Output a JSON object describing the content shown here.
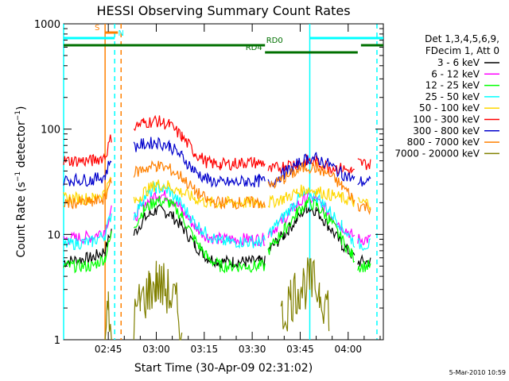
{
  "chart_data": {
    "type": "line",
    "title": "HESSI Observing Summary Count Rates",
    "xlabel": "Start Time (30-Apr-09 02:31:02)",
    "ylabel": "Count Rate (s⁻¹ detector⁻¹)",
    "ylabel_parts": {
      "a": "Count Rate (s",
      "b": "−1",
      "c": " detector",
      "d": "−1",
      "e": ")"
    },
    "y_scale": "log",
    "ylim": [
      1,
      1000
    ],
    "xlim": [
      "02:31:02",
      "04:11:00"
    ],
    "x_ticks": [
      "02:45",
      "03:00",
      "03:15",
      "03:30",
      "03:45",
      "04:00"
    ],
    "y_ticks": [
      "1",
      "10",
      "100",
      "1000"
    ],
    "legend_header": [
      "Det 1,3,4,5,6,9,",
      "FDecim 1, Att 0"
    ],
    "legend_position": "right",
    "series": [
      {
        "name": "3 - 6 keV",
        "color": "#000000",
        "segments": [
          {
            "x": [
              "02:31:02",
              "02:40",
              "02:44",
              "02:46"
            ],
            "y": [
              5.5,
              6,
              7,
              11
            ]
          },
          {
            "x": [
              "02:53",
              "02:56",
              "03:00",
              "03:04",
              "03:08",
              "03:12",
              "03:16",
              "03:20",
              "03:24",
              "03:28",
              "03:32",
              "03:34"
            ],
            "y": [
              10,
              14,
              17,
              16,
              12,
              8,
              6,
              5.5,
              5.5,
              5.5,
              5.5,
              5.5
            ]
          },
          {
            "x": [
              "03:35",
              "03:40",
              "03:44",
              "03:47",
              "03:50",
              "03:54",
              "03:58",
              "04:01",
              "04:02"
            ],
            "y": [
              7,
              10,
              14,
              18,
              17,
              12,
              8,
              6.5,
              6
            ]
          },
          {
            "x": [
              "04:03",
              "04:07"
            ],
            "y": [
              5.5,
              5.5
            ]
          }
        ]
      },
      {
        "name": "6 - 12 keV",
        "color": "#ff00ff",
        "segments": [
          {
            "x": [
              "02:31:02",
              "02:40",
              "02:44",
              "02:46"
            ],
            "y": [
              9,
              9.5,
              11,
              18
            ]
          },
          {
            "x": [
              "02:53",
              "02:56",
              "03:00",
              "03:04",
              "03:08",
              "03:12",
              "03:16",
              "03:20",
              "03:24",
              "03:28",
              "03:32",
              "03:34"
            ],
            "y": [
              14,
              19,
              24,
              23,
              17,
              12,
              9.5,
              9,
              9,
              9,
              9,
              9
            ]
          },
          {
            "x": [
              "03:35",
              "03:40",
              "03:44",
              "03:47",
              "03:50",
              "03:54",
              "03:58",
              "04:01",
              "04:02"
            ],
            "y": [
              10,
              14,
              19,
              22,
              21,
              16,
              12,
              10,
              9.5
            ]
          },
          {
            "x": [
              "04:03",
              "04:07"
            ],
            "y": [
              9,
              9
            ]
          }
        ]
      },
      {
        "name": "12 - 25 keV",
        "color": "#00ff00",
        "segments": [
          {
            "x": [
              "02:31:02",
              "02:40",
              "02:44",
              "02:46"
            ],
            "y": [
              5,
              5,
              6,
              10
            ]
          },
          {
            "x": [
              "02:53",
              "02:56",
              "03:00",
              "03:04",
              "03:08",
              "03:12",
              "03:16",
              "03:20",
              "03:24",
              "03:28",
              "03:32",
              "03:34"
            ],
            "y": [
              12,
              17,
              21,
              20,
              15,
              9,
              6,
              5,
              5,
              5,
              5,
              5
            ]
          },
          {
            "x": [
              "03:35",
              "03:40",
              "03:44",
              "03:47",
              "03:50",
              "03:54",
              "03:58",
              "04:01",
              "04:02"
            ],
            "y": [
              7,
              11,
              16,
              20,
              19,
              14,
              9,
              6.5,
              6
            ]
          },
          {
            "x": [
              "04:03",
              "04:07"
            ],
            "y": [
              5,
              5
            ]
          }
        ]
      },
      {
        "name": "25 - 50 keV",
        "color": "#00ffff",
        "segments": [
          {
            "x": [
              "02:31:02",
              "02:40",
              "02:44",
              "02:46"
            ],
            "y": [
              8,
              8.5,
              10,
              16
            ]
          },
          {
            "x": [
              "02:53",
              "02:56",
              "03:00",
              "03:04",
              "03:08",
              "03:12",
              "03:16",
              "03:20",
              "03:24",
              "03:28",
              "03:32",
              "03:34"
            ],
            "y": [
              15,
              22,
              28,
              26,
              19,
              13,
              10,
              8.5,
              8.5,
              8.5,
              8.5,
              8.5
            ]
          },
          {
            "x": [
              "03:35",
              "03:40",
              "03:44",
              "03:47",
              "03:50",
              "03:54",
              "03:58",
              "04:01",
              "04:02"
            ],
            "y": [
              10,
              15,
              21,
              24,
              23,
              17,
              12,
              9,
              8.5
            ]
          },
          {
            "x": [
              "04:03",
              "04:07"
            ],
            "y": [
              8,
              8
            ]
          }
        ]
      },
      {
        "name": "50 - 100 keV",
        "color": "#ffd700",
        "segments": [
          {
            "x": [
              "02:31:02",
              "02:40",
              "02:44",
              "02:46"
            ],
            "y": [
              22,
              22,
              25,
              35
            ]
          },
          {
            "x": [
              "02:53",
              "02:56",
              "03:00",
              "03:04",
              "03:08",
              "03:12",
              "03:16",
              "03:20",
              "03:24",
              "03:28",
              "03:32",
              "03:34"
            ],
            "y": [
              20,
              25,
              30,
              29,
              25,
              22,
              20,
              20,
              20,
              20,
              20,
              20
            ]
          },
          {
            "x": [
              "03:35",
              "03:40",
              "03:44",
              "03:47",
              "03:50",
              "03:54",
              "03:58",
              "04:01",
              "04:02"
            ],
            "y": [
              20,
              22,
              25,
              27,
              26,
              24,
              22,
              21,
              20
            ]
          },
          {
            "x": [
              "04:03",
              "04:07"
            ],
            "y": [
              20,
              20
            ]
          }
        ]
      },
      {
        "name": "100 - 300 keV",
        "color": "#ff0000",
        "segments": [
          {
            "x": [
              "02:31:02",
              "02:40",
              "02:44",
              "02:46"
            ],
            "y": [
              50,
              50,
              55,
              85
            ]
          },
          {
            "x": [
              "02:53",
              "02:56",
              "03:00",
              "03:04",
              "03:08",
              "03:12",
              "03:16",
              "03:20",
              "03:24",
              "03:28",
              "03:32",
              "03:34"
            ],
            "y": [
              105,
              115,
              120,
              110,
              85,
              60,
              48,
              46,
              47,
              48,
              48,
              48
            ]
          },
          {
            "x": [
              "03:35",
              "03:40",
              "03:44",
              "03:47",
              "03:50",
              "03:54",
              "03:58",
              "04:01",
              "04:02"
            ],
            "y": [
              40,
              45,
              48,
              50,
              48,
              44,
              42,
              40,
              38
            ]
          },
          {
            "x": [
              "04:03",
              "04:07"
            ],
            "y": [
              48,
              46
            ]
          }
        ]
      },
      {
        "name": "300 - 800 keV",
        "color": "#0000cc",
        "segments": [
          {
            "x": [
              "02:31:02",
              "02:40",
              "02:44",
              "02:46"
            ],
            "y": [
              33,
              33,
              36,
              55
            ]
          },
          {
            "x": [
              "02:53",
              "02:56",
              "03:00",
              "03:04",
              "03:08",
              "03:12",
              "03:16",
              "03:20",
              "03:24",
              "03:28",
              "03:32",
              "03:34"
            ],
            "y": [
              68,
              72,
              75,
              70,
              55,
              40,
              33,
              31,
              31,
              32,
              32,
              32
            ]
          },
          {
            "x": [
              "03:35",
              "03:40",
              "03:44",
              "03:47",
              "03:50",
              "03:54",
              "03:58",
              "04:01",
              "04:02"
            ],
            "y": [
              30,
              38,
              46,
              52,
              53,
              46,
              38,
              34,
              32
            ]
          },
          {
            "x": [
              "04:03",
              "04:07"
            ],
            "y": [
              32,
              31
            ]
          }
        ]
      },
      {
        "name": "800 - 7000 keV",
        "color": "#ff8000",
        "segments": [
          {
            "x": [
              "02:31:02",
              "02:40",
              "02:44",
              "02:46"
            ],
            "y": [
              20,
              20,
              22,
              35
            ]
          },
          {
            "x": [
              "02:53",
              "02:56",
              "03:00",
              "03:04",
              "03:08",
              "03:12",
              "03:16",
              "03:20",
              "03:24",
              "03:28",
              "03:32",
              "03:34"
            ],
            "y": [
              38,
              42,
              45,
              42,
              35,
              26,
              21,
              20,
              20,
              20,
              20,
              20
            ]
          },
          {
            "x": [
              "03:35",
              "03:40",
              "03:44",
              "03:47",
              "03:50",
              "03:54",
              "03:58",
              "04:01",
              "04:02"
            ],
            "y": [
              28,
              34,
              40,
              44,
              43,
              37,
              29,
              23,
              21
            ]
          },
          {
            "x": [
              "04:03",
              "04:07"
            ],
            "y": [
              19,
              18
            ]
          }
        ]
      },
      {
        "name": "7000 - 20000 keV",
        "color": "#808000",
        "segments": [
          {
            "x": [
              "02:44",
              "02:45",
              "02:46"
            ],
            "y": [
              1,
              1.8,
              1
            ]
          },
          {
            "x": [
              "02:53",
              "02:55",
              "02:58",
              "03:00",
              "03:03",
              "03:06",
              "03:08"
            ],
            "y": [
              1.5,
              2.2,
              3,
              3.5,
              3,
              2.2,
              1.2
            ]
          },
          {
            "x": [
              "03:39",
              "03:42",
              "03:45",
              "03:48",
              "03:51",
              "03:54"
            ],
            "y": [
              1.5,
              2.5,
              3.2,
              3.5,
              3,
              2
            ]
          }
        ]
      }
    ],
    "flags": [
      {
        "label": "S",
        "color": "#ff8000",
        "x_start": "02:44",
        "x_end": "02:48"
      },
      {
        "label": "N",
        "color": "#00ffff",
        "x_start": "02:31:02",
        "x_end": "02:47"
      },
      {
        "label": "N",
        "color": "#00ffff",
        "x_start": "03:48",
        "x_end": "04:11:00"
      },
      {
        "label": "RD0",
        "color": "#007000",
        "x_start": "02:31:02",
        "x_end": "03:34"
      },
      {
        "label": "RD0",
        "color": "#007000",
        "x_start": "04:04",
        "x_end": "04:11:00"
      },
      {
        "label": "RD4",
        "color": "#007000",
        "x_start": "03:34",
        "x_end": "04:03"
      }
    ],
    "vlines": [
      {
        "x": "02:31:02",
        "color": "#00ffff",
        "style": "solid"
      },
      {
        "x": "02:44",
        "color": "#ff8000",
        "style": "solid"
      },
      {
        "x": "02:47",
        "color": "#00ffff",
        "style": "dashed"
      },
      {
        "x": "02:49",
        "color": "#ff8000",
        "style": "dashed"
      },
      {
        "x": "03:48",
        "color": "#00ffff",
        "style": "solid"
      },
      {
        "x": "04:09",
        "color": "#00ffff",
        "style": "dashed"
      }
    ]
  },
  "footer": {
    "timestamp": "5-Mar-2010 10:59"
  }
}
